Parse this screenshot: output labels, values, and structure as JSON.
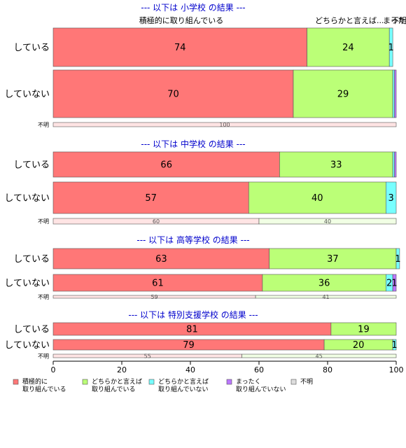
{
  "chart_data": {
    "type": "bar",
    "orientation": "horizontal",
    "stacked": true,
    "xlim": [
      0,
      100
    ],
    "x_ticks": [
      "0",
      "20",
      "40",
      "60",
      "80",
      "100"
    ],
    "top_labels": [
      "積極的に取り組んでいる",
      "どちらかと言えば...",
      "まった...",
      "不明"
    ],
    "series": [
      {
        "name": "積極的に\n取り組んでいる",
        "color": "#ff7777"
      },
      {
        "name": "どちらかと言えば\n取り組んでいる",
        "color": "#bbff77"
      },
      {
        "name": "どちらかと言えば\n取り組んでいない",
        "color": "#77ffff"
      },
      {
        "name": "まったく\n取り組んでいない",
        "color": "#bb77ff"
      },
      {
        "name": "不明",
        "color": "#dddddd"
      }
    ],
    "panels": [
      {
        "title": "--- 以下は 小学校 の結果 ---",
        "rows": [
          {
            "label": "している",
            "values": [
              74,
              24,
              1,
              0,
              0
            ]
          },
          {
            "label": "していない",
            "values": [
              70,
              29,
              0.5,
              0.5,
              0
            ]
          },
          {
            "label": "不明",
            "values": [
              100,
              0,
              0,
              0,
              0
            ]
          }
        ]
      },
      {
        "title": "--- 以下は 中学校 の結果 ---",
        "rows": [
          {
            "label": "している",
            "values": [
              66,
              33,
              0.5,
              0.5,
              0
            ]
          },
          {
            "label": "していない",
            "values": [
              57,
              40,
              3,
              0,
              0
            ]
          },
          {
            "label": "不明",
            "values": [
              60,
              40,
              0,
              0,
              0
            ]
          }
        ]
      },
      {
        "title": "--- 以下は 高等学校 の結果 ---",
        "rows": [
          {
            "label": "している",
            "values": [
              63,
              37,
              1,
              0,
              0
            ]
          },
          {
            "label": "していない",
            "values": [
              61,
              36,
              2,
              1,
              0
            ]
          },
          {
            "label": "不明",
            "values": [
              59,
              41,
              0,
              0,
              0
            ]
          }
        ]
      },
      {
        "title": "--- 以下は 特別支援学校 の結果 ---",
        "rows": [
          {
            "label": "している",
            "values": [
              81,
              19,
              0,
              0,
              0
            ]
          },
          {
            "label": "していない",
            "values": [
              79,
              20,
              1,
              0,
              0
            ]
          },
          {
            "label": "不明",
            "values": [
              55,
              45,
              0,
              0,
              0
            ]
          }
        ]
      }
    ]
  }
}
